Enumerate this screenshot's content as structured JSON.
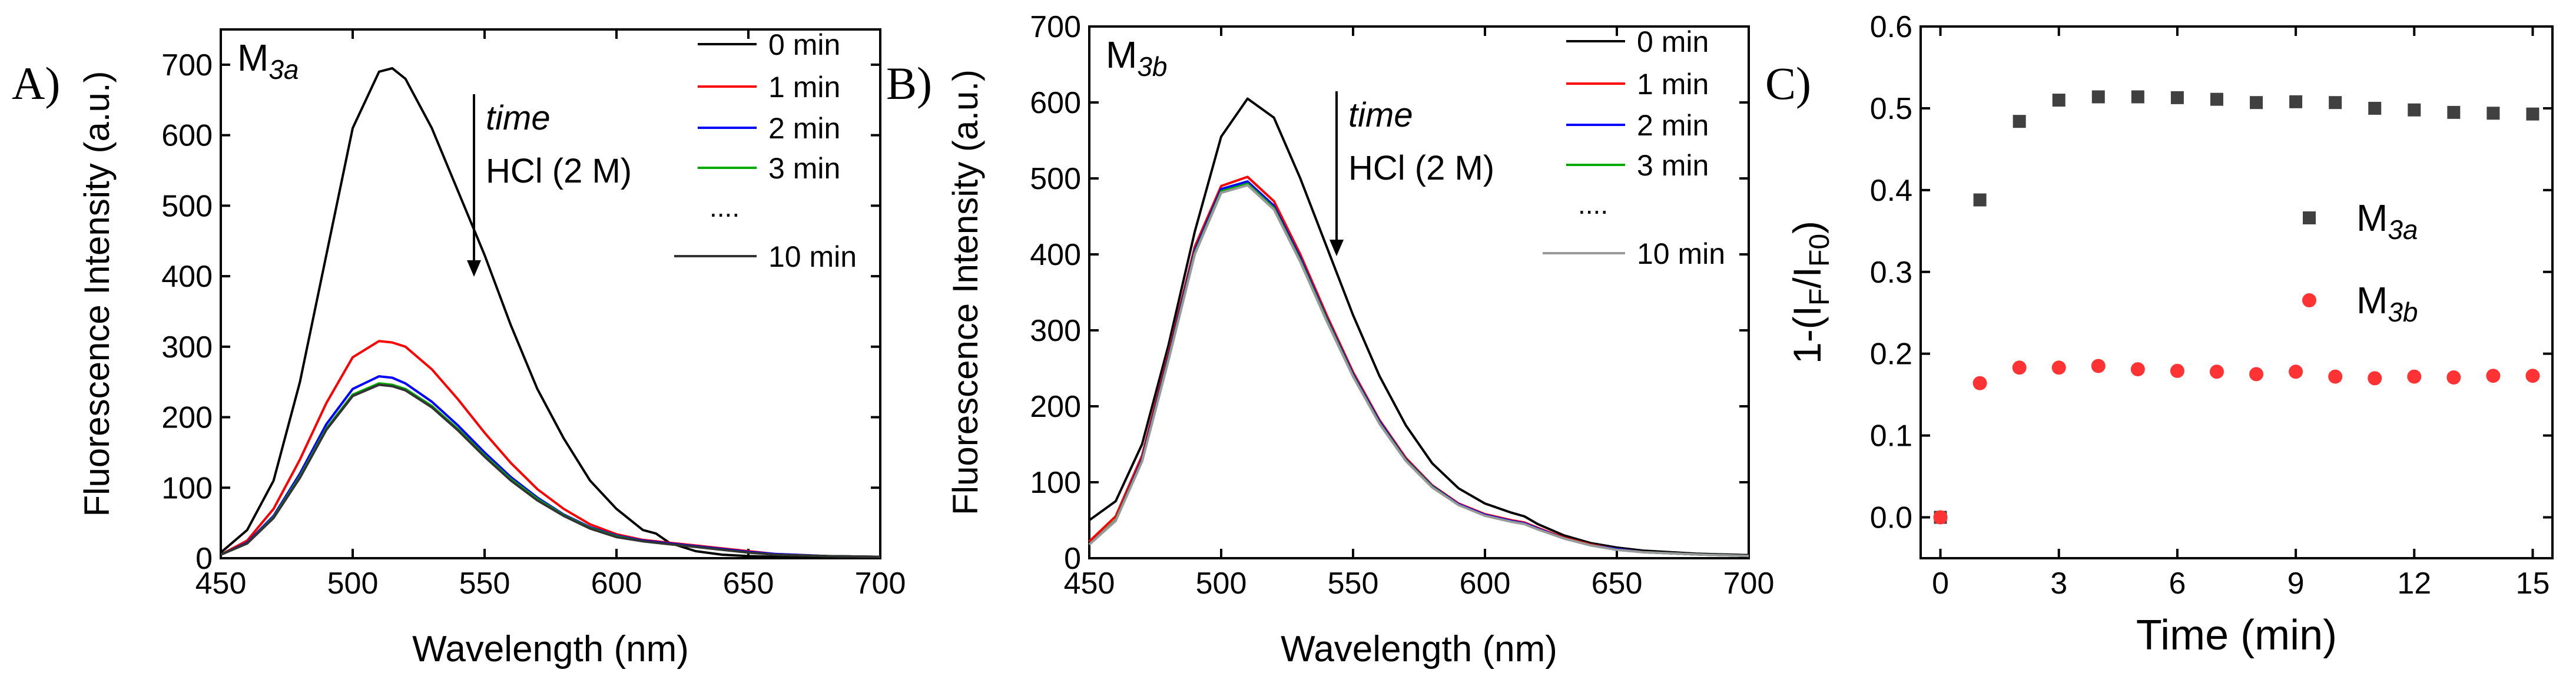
{
  "chart_data": [
    {
      "panel": "A)",
      "type": "line",
      "sample": "M",
      "sample_sub": "3a",
      "xlabel": "Wavelength (nm)",
      "ylabel": "Fluorescence Intensity (a.u.)",
      "xlim": [
        450,
        700
      ],
      "ylim": [
        0,
        750
      ],
      "xticks": [
        450,
        500,
        550,
        600,
        650,
        700
      ],
      "yticks": [
        0,
        100,
        200,
        300,
        400,
        500,
        600,
        700
      ],
      "annotation": {
        "line1": "time",
        "line2": "HCl (2 M)"
      },
      "legend_ellipsis": "....",
      "x": [
        450,
        460,
        470,
        480,
        490,
        500,
        510,
        515,
        520,
        530,
        540,
        550,
        560,
        570,
        580,
        590,
        600,
        610,
        615,
        620,
        630,
        640,
        650,
        660,
        680,
        700
      ],
      "series": [
        {
          "name": "0 min",
          "color": "#000000",
          "values": [
            8,
            40,
            110,
            250,
            430,
            610,
            690,
            695,
            680,
            610,
            520,
            430,
            330,
            240,
            170,
            110,
            70,
            40,
            35,
            22,
            10,
            5,
            3,
            2,
            1,
            1
          ]
        },
        {
          "name": "1 min",
          "color": "#ff0000",
          "values": [
            5,
            25,
            70,
            140,
            220,
            285,
            308,
            306,
            300,
            268,
            225,
            178,
            135,
            98,
            70,
            48,
            34,
            26,
            24,
            22,
            18,
            14,
            10,
            6,
            3,
            2
          ]
        },
        {
          "name": "2 min",
          "color": "#0000ff",
          "values": [
            5,
            22,
            60,
            120,
            190,
            240,
            258,
            256,
            248,
            222,
            188,
            150,
            115,
            86,
            62,
            44,
            32,
            25,
            23,
            21,
            17,
            13,
            9,
            6,
            3,
            2
          ]
        },
        {
          "name": "3 min",
          "color": "#00aa00",
          "values": [
            5,
            21,
            58,
            116,
            184,
            232,
            248,
            246,
            240,
            216,
            183,
            146,
            112,
            84,
            61,
            43,
            31,
            24,
            22,
            20,
            16,
            12,
            8,
            5,
            3,
            2
          ]
        },
        {
          "name": "10 min",
          "color": "#333333",
          "values": [
            5,
            21,
            57,
            114,
            182,
            230,
            246,
            244,
            238,
            214,
            181,
            144,
            110,
            82,
            60,
            42,
            30,
            24,
            22,
            20,
            16,
            12,
            8,
            5,
            3,
            2
          ]
        }
      ]
    },
    {
      "panel": "B)",
      "type": "line",
      "sample": "M",
      "sample_sub": "3b",
      "xlabel": "Wavelength (nm)",
      "ylabel": "Fluorescence Intensity (a.u.)",
      "xlim": [
        450,
        700
      ],
      "ylim": [
        0,
        700
      ],
      "xticks": [
        450,
        500,
        550,
        600,
        650,
        700
      ],
      "yticks": [
        0,
        100,
        200,
        300,
        400,
        500,
        600,
        700
      ],
      "annotation": {
        "line1": "time",
        "line2": "HCl (2 M)"
      },
      "legend_ellipsis": "....",
      "x": [
        450,
        460,
        470,
        480,
        490,
        500,
        510,
        520,
        530,
        540,
        550,
        560,
        570,
        580,
        590,
        600,
        610,
        615,
        620,
        630,
        640,
        650,
        660,
        680,
        700
      ],
      "series": [
        {
          "name": "0 min",
          "color": "#000000",
          "values": [
            50,
            75,
            150,
            280,
            430,
            555,
            605,
            580,
            500,
            410,
            320,
            240,
            175,
            125,
            92,
            72,
            60,
            55,
            45,
            30,
            20,
            14,
            10,
            6,
            4
          ]
        },
        {
          "name": "1 min",
          "color": "#ff0000",
          "values": [
            22,
            55,
            135,
            270,
            410,
            490,
            502,
            470,
            400,
            320,
            245,
            182,
            132,
            96,
            72,
            58,
            50,
            47,
            40,
            27,
            18,
            12,
            8,
            5,
            3
          ]
        },
        {
          "name": "2 min",
          "color": "#0000ff",
          "values": [
            18,
            50,
            130,
            265,
            405,
            486,
            496,
            464,
            395,
            316,
            242,
            180,
            130,
            95,
            71,
            57,
            49,
            46,
            39,
            26,
            17,
            12,
            8,
            5,
            3
          ]
        },
        {
          "name": "3 min",
          "color": "#00aa00",
          "values": [
            18,
            50,
            128,
            262,
            402,
            483,
            493,
            461,
            392,
            314,
            240,
            178,
            129,
            94,
            70,
            56,
            48,
            45,
            38,
            26,
            17,
            11,
            8,
            5,
            3
          ]
        },
        {
          "name": "10 min",
          "color": "#999999",
          "values": [
            18,
            49,
            127,
            260,
            400,
            481,
            491,
            459,
            390,
            312,
            239,
            177,
            128,
            93,
            70,
            56,
            48,
            45,
            38,
            26,
            17,
            11,
            8,
            5,
            3
          ]
        }
      ]
    },
    {
      "panel": "C)",
      "type": "scatter",
      "xlabel": "Time (min)",
      "ylabel": "1-(I_F/I_F0)",
      "xlim": [
        -0.5,
        15.5
      ],
      "ylim": [
        -0.05,
        0.6
      ],
      "xticks": [
        0,
        3,
        6,
        9,
        12,
        15
      ],
      "yticks": [
        0.0,
        0.1,
        0.2,
        0.3,
        0.4,
        0.5,
        0.6
      ],
      "ylabel_parts": [
        "1-(I",
        "F",
        "/I",
        "F0",
        ")"
      ],
      "x": [
        0,
        1,
        2,
        3,
        4,
        5,
        6,
        7,
        8,
        9,
        10,
        11,
        12,
        13,
        14,
        15
      ],
      "series": [
        {
          "name": "M",
          "sub": "3a",
          "color": "#404040",
          "marker": "square",
          "values": [
            0.0,
            0.388,
            0.484,
            0.51,
            0.514,
            0.514,
            0.513,
            0.511,
            0.507,
            0.508,
            0.507,
            0.5,
            0.498,
            0.495,
            0.494,
            0.493
          ]
        },
        {
          "name": "M",
          "sub": "3b",
          "color": "#ff3333",
          "marker": "circle",
          "values": [
            0.0,
            0.164,
            0.183,
            0.183,
            0.185,
            0.181,
            0.179,
            0.178,
            0.175,
            0.178,
            0.172,
            0.17,
            0.172,
            0.171,
            0.173,
            0.173
          ]
        }
      ]
    }
  ]
}
